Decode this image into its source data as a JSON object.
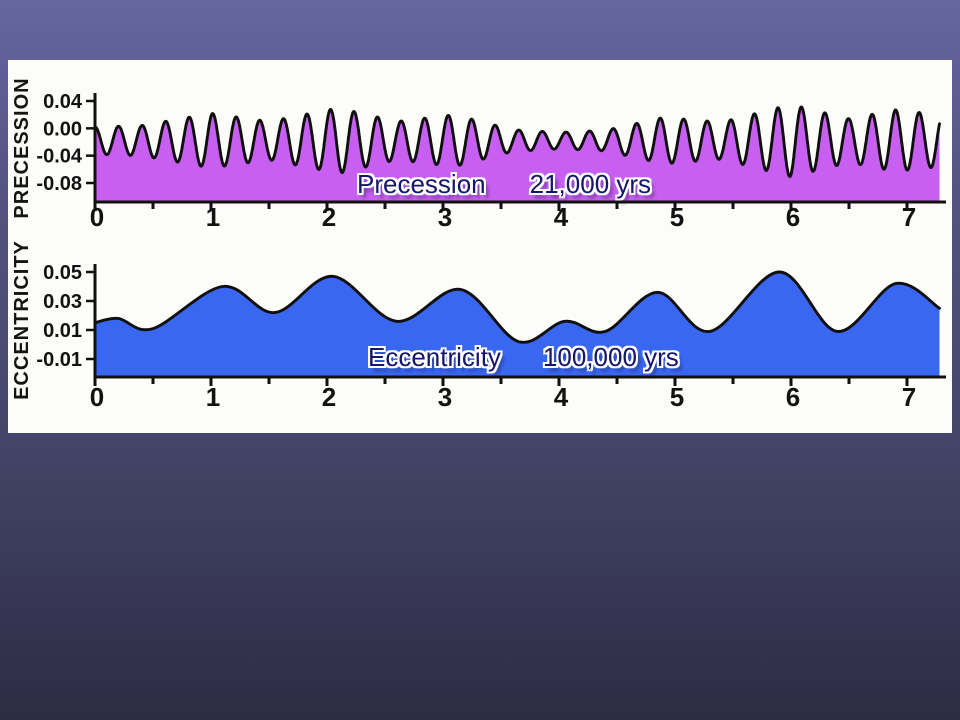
{
  "palette": {
    "slide_top": "#67679f",
    "slide_mid": "#45456a",
    "slide_bottom": "#2c2c44",
    "panel_background": "#fcfcf8",
    "axis_color": "#121212",
    "caption_text_color": "#16166b",
    "caption_halo_color": "#ffffff"
  },
  "chart_data": [
    {
      "type": "area",
      "id": "precession",
      "ylabel": "PRECESSION",
      "caption": {
        "name": "Precession",
        "period": "21,000 yrs"
      },
      "fill_color": "#c75ff0",
      "line_color": "#0f0f0f",
      "xticks": [
        "0",
        "1",
        "2",
        "3",
        "4",
        "5",
        "6",
        "7"
      ],
      "xtick_values": [
        0,
        1,
        2,
        3,
        4,
        5,
        6,
        7
      ],
      "x_minor_step": 0.5,
      "xlim": [
        0,
        7.28
      ],
      "yticks": [
        "0.04",
        "0.00",
        "-0.04",
        "-0.08"
      ],
      "ytick_values": [
        0.04,
        0.0,
        -0.04,
        -0.08
      ],
      "ylim": [
        -0.108,
        0.04
      ],
      "signal": {
        "description": "quasi-periodic oscillation, amplitude-modulated",
        "period_units": 0.203,
        "mean": -0.018,
        "envelope": [
          [
            0,
            0.02
          ],
          [
            0.4,
            0.022
          ],
          [
            1.0,
            0.04
          ],
          [
            1.5,
            0.028
          ],
          [
            2.1,
            0.048
          ],
          [
            2.6,
            0.028
          ],
          [
            3.1,
            0.038
          ],
          [
            3.6,
            0.016
          ],
          [
            4.0,
            0.012
          ],
          [
            4.4,
            0.015
          ],
          [
            4.9,
            0.034
          ],
          [
            5.4,
            0.027
          ],
          [
            6.0,
            0.053
          ],
          [
            6.5,
            0.032
          ],
          [
            6.9,
            0.045
          ],
          [
            7.28,
            0.038
          ]
        ]
      }
    },
    {
      "type": "area",
      "id": "eccentricity",
      "ylabel": "ECCENTRICITY",
      "caption": {
        "name": "Eccentricity",
        "period": "100,000 yrs"
      },
      "fill_color": "#3a67f2",
      "line_color": "#0f0f0f",
      "xticks": [
        "0",
        "1",
        "2",
        "3",
        "4",
        "5",
        "6",
        "7"
      ],
      "xtick_values": [
        0,
        1,
        2,
        3,
        4,
        5,
        6,
        7
      ],
      "x_minor_step": 0.5,
      "xlim": [
        0,
        7.28
      ],
      "yticks": [
        "0.05",
        "0.03",
        "0.01",
        "-0.01"
      ],
      "ytick_values": [
        0.05,
        0.03,
        0.01,
        -0.01
      ],
      "ylim": [
        -0.0224,
        0.05
      ],
      "points": [
        [
          0,
          0.015
        ],
        [
          0.2,
          0.018
        ],
        [
          0.5,
          0.011
        ],
        [
          1.1,
          0.04
        ],
        [
          1.55,
          0.022
        ],
        [
          2.05,
          0.047
        ],
        [
          2.6,
          0.016
        ],
        [
          3.15,
          0.038
        ],
        [
          3.65,
          0.002
        ],
        [
          4.05,
          0.016
        ],
        [
          4.4,
          0.009
        ],
        [
          4.85,
          0.036
        ],
        [
          5.3,
          0.009
        ],
        [
          5.9,
          0.05
        ],
        [
          6.4,
          0.009
        ],
        [
          6.9,
          0.042
        ],
        [
          7.28,
          0.025
        ]
      ]
    }
  ]
}
